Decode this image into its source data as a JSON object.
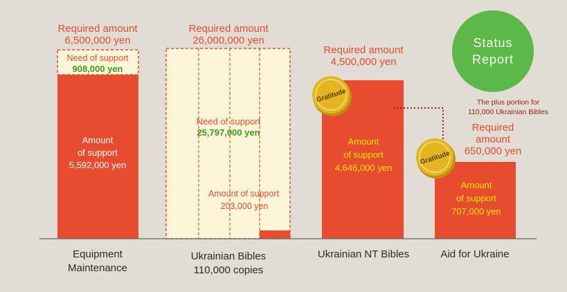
{
  "colors": {
    "background": "#e1dcd4",
    "bar_fill": "#e84c2e",
    "need_fill": "#fdf5d8",
    "need_border": "#e84c2e",
    "label_orange": "#e84c2e",
    "label_green": "#3a9d1e",
    "label_white": "#ffffff",
    "label_yellow": "#ffe600",
    "status_circle": "#5cb847",
    "medal_gold": "#e3b521",
    "plus_note_red": "#9b1c10",
    "baseline": "#666666"
  },
  "status_badge": {
    "line1": "Status",
    "line2": "Report"
  },
  "chart_data": {
    "type": "bar",
    "unit": "yen",
    "categories": [
      "Equipment Maintenance",
      "Ukrainian Bibles 110,000 copies",
      "Ukrainian NT Bibles",
      "Aid for Ukraine"
    ],
    "series": [
      {
        "name": "Amount of support",
        "values": [
          5592000,
          203000,
          4646000,
          707000
        ]
      },
      {
        "name": "Need of support",
        "values": [
          908000,
          25797000,
          0,
          0
        ]
      }
    ],
    "required_amounts": [
      6500000,
      26000000,
      4500000,
      650000
    ],
    "bars": [
      {
        "category_lines": [
          "Equipment",
          "Maintenance"
        ],
        "required_label": "Required amount",
        "required_value": "6,500,000 yen",
        "support_lines": [
          "Amount",
          "of support",
          "5,592,000 yen"
        ],
        "need_label": "Need of support",
        "need_value": "908,000 yen"
      },
      {
        "category_lines": [
          "Ukrainian Bibles",
          "110,000 copies"
        ],
        "required_label": "Required amount",
        "required_value": "26,000,000 yen",
        "support_lines": [
          "Amount of support",
          "203,000 yen"
        ],
        "need_label": "Need of support",
        "need_value": "25,797,000 yen"
      },
      {
        "category_lines": [
          "Ukrainian NT Bibles"
        ],
        "required_label": "Required amount",
        "required_value": "4,500,000 yen",
        "support_lines": [
          "Amount",
          "of support",
          "4,646,000 yen"
        ],
        "badge": "Gratitude"
      },
      {
        "category_lines": [
          "Aid for Ukraine"
        ],
        "required_label": "Required",
        "required_label_2": "amount",
        "required_value": "650,000 yen",
        "support_lines": [
          "Amount",
          "of support",
          "707,000 yen"
        ],
        "badge": "Gratitude"
      }
    ],
    "annotation": [
      "The plus portion for",
      "110,000 Ukrainian Bibles"
    ]
  }
}
